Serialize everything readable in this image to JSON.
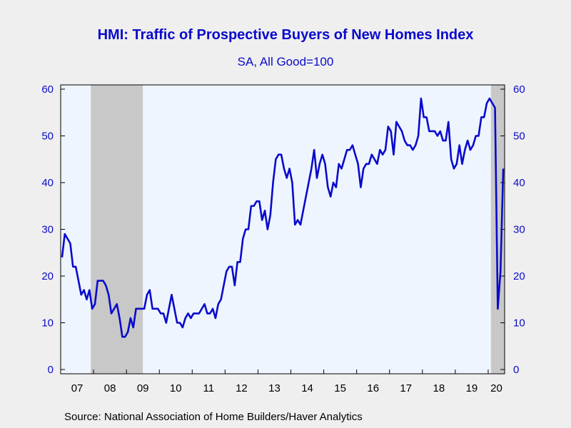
{
  "chart_data": {
    "type": "line",
    "title": "HMI: Traffic of Prospective Buyers of New Homes Index",
    "subtitle": "SA, All Good=100",
    "source": "Source:  National Association of Home Builders/Haver Analytics",
    "ylim": [
      0,
      60
    ],
    "yticks": [
      0,
      10,
      20,
      30,
      40,
      50,
      60
    ],
    "x_tick_labels": [
      "07",
      "08",
      "09",
      "10",
      "11",
      "12",
      "13",
      "14",
      "15",
      "16",
      "17",
      "18",
      "19",
      "20"
    ],
    "x_range": [
      "2007-01",
      "2020-06"
    ],
    "grid": false,
    "line_color": "#0a0acc",
    "plot_background": "#eef5ff",
    "recession_color": "#c8c8c8",
    "recessions": [
      [
        "2007-12",
        "2009-06"
      ],
      [
        "2020-02",
        "2020-06"
      ]
    ],
    "series": [
      {
        "start": "2007-01",
        "frequency": "monthly",
        "values": [
          24,
          29,
          28,
          27,
          22,
          22,
          19,
          16,
          17,
          15,
          17,
          13,
          14,
          19,
          19,
          19,
          18,
          16,
          12,
          13,
          14,
          11,
          7,
          7,
          8,
          11,
          9,
          13,
          13,
          13,
          13,
          16,
          17,
          13,
          13,
          13,
          12,
          12,
          10,
          13,
          16,
          13,
          10,
          10,
          9,
          11,
          12,
          11,
          12,
          12,
          12,
          13,
          14,
          12,
          12,
          13,
          11,
          14,
          15,
          18,
          21,
          22,
          22,
          18,
          23,
          23,
          28,
          30,
          30,
          35,
          35,
          36,
          36,
          32,
          34,
          30,
          33,
          40,
          45,
          46,
          46,
          43,
          41,
          43,
          40,
          31,
          32,
          31,
          34,
          37,
          40,
          43,
          47,
          41,
          44,
          46,
          44,
          39,
          37,
          40,
          39,
          44,
          43,
          45,
          47,
          47,
          48,
          46,
          44,
          39,
          43,
          44,
          44,
          46,
          45,
          44,
          47,
          46,
          47,
          52,
          51,
          46,
          53,
          52,
          51,
          49,
          48,
          48,
          47,
          48,
          50,
          58,
          54,
          54,
          51,
          51,
          51,
          50,
          51,
          49,
          49,
          53,
          45,
          43,
          44,
          48,
          44,
          47,
          49,
          47,
          48,
          50,
          50,
          54,
          54,
          57,
          58,
          57,
          56,
          13,
          21,
          43
        ]
      }
    ]
  }
}
